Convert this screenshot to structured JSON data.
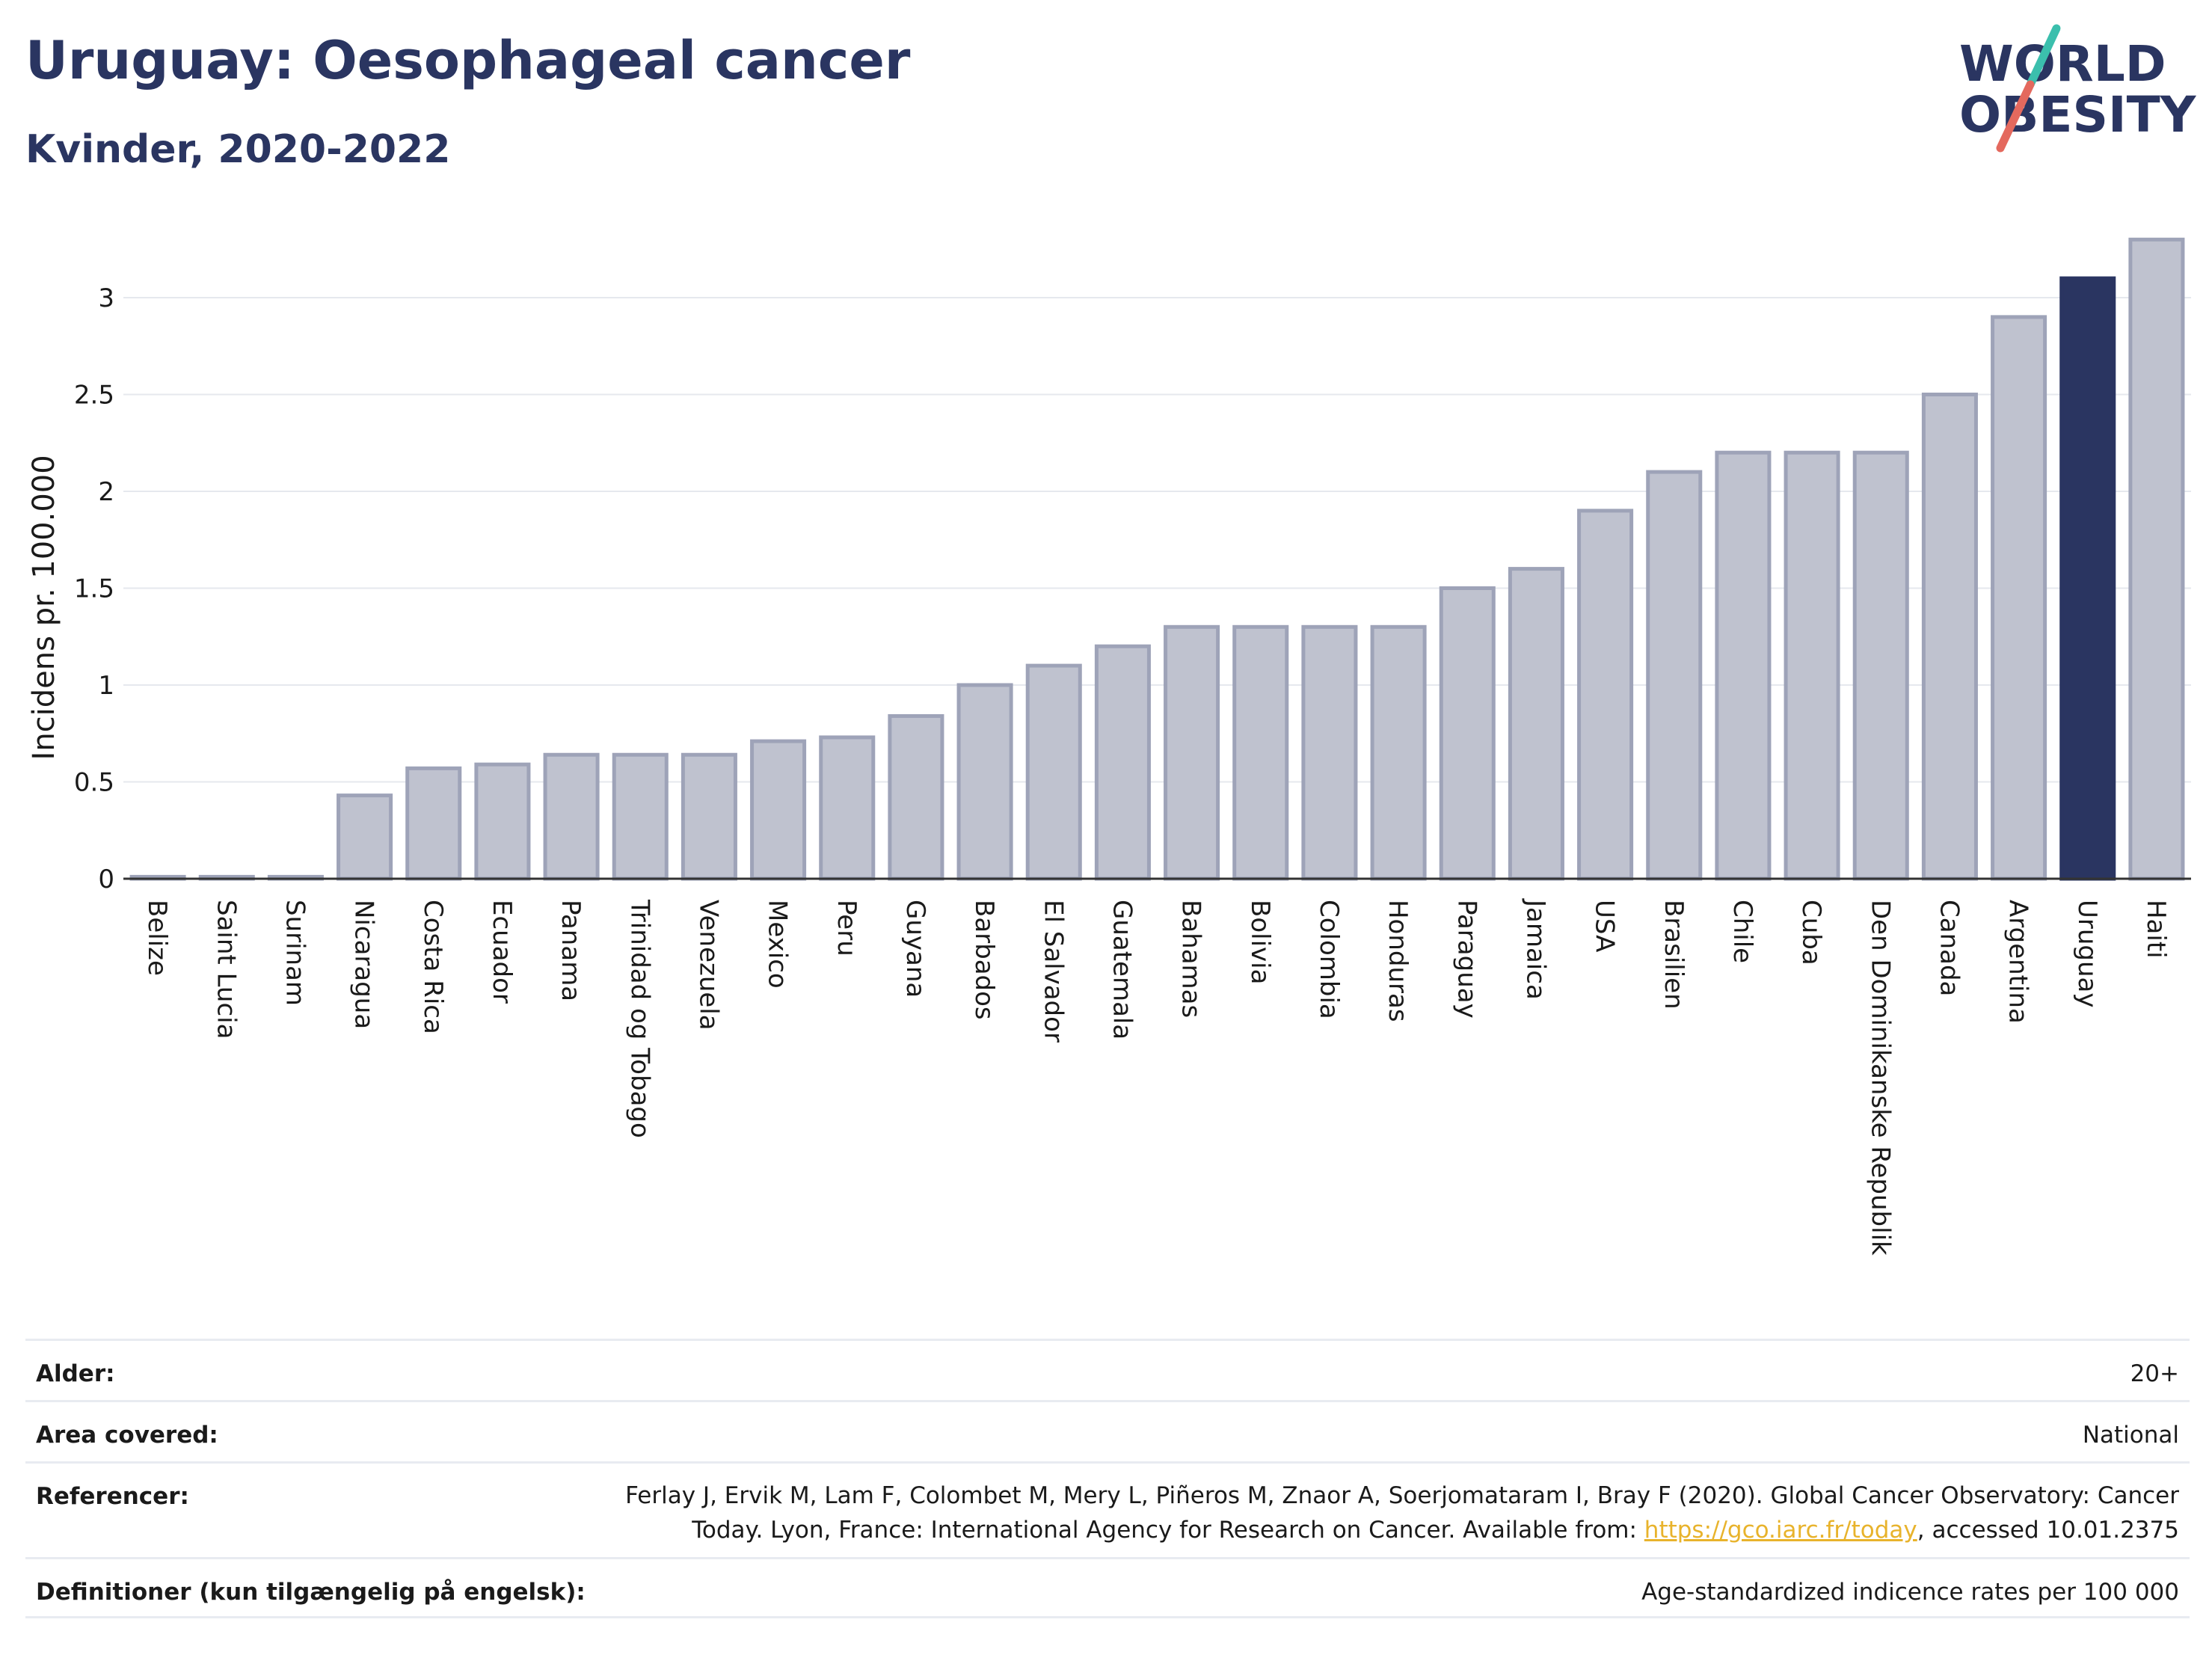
{
  "header": {
    "title": "Uruguay: Oesophageal cancer",
    "subtitle": "Kvinder, 2020-2022"
  },
  "logo": {
    "line1": "WORLD",
    "line2": "OBESITY",
    "colors": {
      "text": "#2a3561",
      "slash_teal": "#3bbfad",
      "slash_red": "#e4695e"
    }
  },
  "colors": {
    "bar_fill": "#bfc2cf",
    "bar_stroke": "#9ea3b8",
    "highlight": "#2a3561",
    "grid": "#e6e8ee",
    "axis": "#333333"
  },
  "chart_data": {
    "type": "bar",
    "title": "Uruguay: Oesophageal cancer",
    "ylabel": "Incidens pr. 100.000",
    "xlabel": "",
    "ylim": [
      0,
      3.3
    ],
    "yticks": [
      0,
      0.5,
      1,
      1.5,
      2,
      2.5,
      3
    ],
    "ytick_labels": [
      "0",
      "0.5",
      "1",
      "1.5",
      "2",
      "2.5",
      "3"
    ],
    "grid": true,
    "highlight_category": "Uruguay",
    "categories": [
      "Belize",
      "Saint Lucia",
      "Surinam",
      "Nicaragua",
      "Costa Rica",
      "Ecuador",
      "Panama",
      "Trinidad og Tobago",
      "Venezuela",
      "Mexico",
      "Peru",
      "Guyana",
      "Barbados",
      "El Salvador",
      "Guatemala",
      "Bahamas",
      "Bolivia",
      "Colombia",
      "Honduras",
      "Paraguay",
      "Jamaica",
      "USA",
      "Brasilien",
      "Chile",
      "Cuba",
      "Den Dominikanske Republik",
      "Canada",
      "Argentina",
      "Uruguay",
      "Haiti"
    ],
    "values": [
      0.01,
      0.01,
      0.01,
      0.43,
      0.57,
      0.59,
      0.64,
      0.64,
      0.64,
      0.71,
      0.73,
      0.84,
      1.0,
      1.1,
      1.2,
      1.3,
      1.3,
      1.3,
      1.3,
      1.5,
      1.6,
      1.9,
      2.1,
      2.2,
      2.2,
      2.2,
      2.5,
      2.9,
      3.1,
      3.3
    ]
  },
  "info": {
    "rows": [
      {
        "label": "Alder:",
        "value": "20+"
      },
      {
        "label": "Area covered:",
        "value": "National"
      },
      {
        "label": "Referencer:",
        "value_line1": "Ferlay J, Ervik M, Lam F, Colombet M, Mery L, Piñeros M, Znaor A, Soerjomataram I, Bray F (2020). Global Cancer Observatory: Cancer",
        "value_line2_pre": "Today. Lyon, France: International Agency for Research on Cancer. Available from: ",
        "link": "https://gco.iarc.fr/today",
        "value_line2_post": ", accessed 10.01.2375"
      },
      {
        "label": "Definitioner (kun tilgængelig på engelsk):",
        "value": "Age-standardized indicence rates per 100 000"
      }
    ]
  }
}
